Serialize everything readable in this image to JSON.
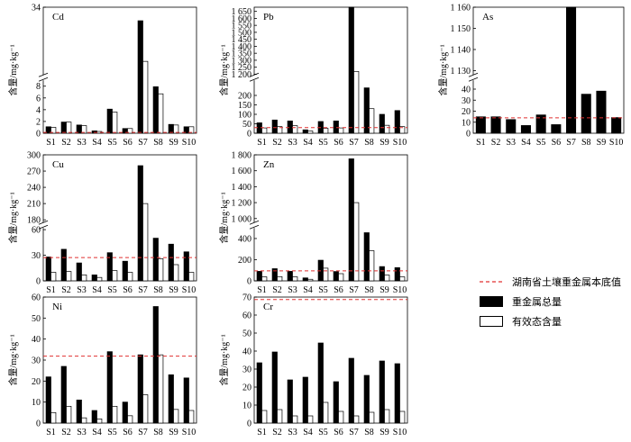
{
  "legend": {
    "threshold_label": "湖南省土壤重金属本底值",
    "total_label": "重金属总量",
    "available_label": "有效态含量"
  },
  "colors": {
    "total": "#000000",
    "available": "#ffffff",
    "threshold": "#e03030"
  },
  "chart_data": [
    {
      "type": "bar",
      "title": "Cd",
      "ylabel": "含量/mg·kg⁻¹",
      "categories": [
        "S1",
        "S2",
        "S3",
        "S4",
        "S5",
        "S6",
        "S7",
        "S8",
        "S9",
        "S10"
      ],
      "series": [
        {
          "values": [
            1.1,
            1.9,
            1.4,
            0.4,
            4.1,
            0.8,
            33.9,
            7.9,
            1.5,
            1.1
          ]
        },
        {
          "values": [
            1.0,
            1.9,
            1.3,
            0.3,
            3.6,
            0.8,
            33.6,
            6.7,
            1.4,
            1.1
          ]
        }
      ],
      "threshold": 0.126,
      "ylim": [
        0,
        34
      ],
      "ticks": [
        0,
        2,
        4,
        6,
        8,
        34
      ],
      "break": [
        9,
        33.5
      ]
    },
    {
      "type": "bar",
      "title": "Pb",
      "ylabel": "含量/mg·kg⁻¹",
      "categories": [
        "S1",
        "S2",
        "S3",
        "S4",
        "S5",
        "S6",
        "S7",
        "S8",
        "S9",
        "S10"
      ],
      "series": [
        {
          "values": [
            55,
            70,
            65,
            18,
            62,
            65,
            1680,
            240,
            100,
            120
          ]
        },
        {
          "values": [
            28,
            35,
            40,
            12,
            26,
            28,
            1220,
            130,
            42,
            35
          ]
        }
      ],
      "threshold": 29.7,
      "ylim": [
        0,
        1680
      ],
      "ticks": [
        0,
        50,
        100,
        150,
        200,
        1200,
        1250,
        1300,
        1350,
        1400,
        1450,
        1500,
        1550,
        1600,
        1650
      ],
      "break": [
        280,
        1195
      ]
    },
    {
      "type": "bar",
      "title": "As",
      "ylabel": "含量/mg·kg⁻¹",
      "categories": [
        "S1",
        "S2",
        "S3",
        "S4",
        "S5",
        "S6",
        "S7",
        "S8",
        "S9",
        "S10"
      ],
      "series": [
        {
          "values": [
            14.9,
            14.9,
            12.4,
            7.0,
            16.6,
            7.8,
            1160,
            35.4,
            38.2,
            14.2
          ]
        }
      ],
      "threshold": 14.0,
      "ylim": [
        0,
        1160
      ],
      "ticks": [
        0,
        10,
        20,
        30,
        40,
        1130,
        1140,
        1150,
        1160
      ],
      "break": [
        48,
        1128
      ]
    },
    {
      "type": "bar",
      "title": "Cu",
      "ylabel": "含量/mg·kg⁻¹",
      "categories": [
        "S1",
        "S2",
        "S3",
        "S4",
        "S5",
        "S6",
        "S7",
        "S8",
        "S9",
        "S10"
      ],
      "series": [
        {
          "values": [
            28,
            37,
            21,
            7,
            33,
            23,
            280,
            50,
            43,
            34
          ]
        },
        {
          "values": [
            10,
            11,
            7,
            4,
            12,
            10,
            210,
            26,
            19,
            10
          ]
        }
      ],
      "threshold": 27.3,
      "ylim": [
        0,
        300
      ],
      "ticks": [
        0,
        30,
        60,
        180,
        210,
        240,
        270,
        300
      ],
      "break": [
        62,
        175
      ]
    },
    {
      "type": "bar",
      "title": "Zn",
      "ylabel": "含量/mg·kg⁻¹",
      "categories": [
        "S1",
        "S2",
        "S3",
        "S4",
        "S5",
        "S6",
        "S7",
        "S8",
        "S9",
        "S10"
      ],
      "series": [
        {
          "values": [
            90,
            115,
            90,
            28,
            195,
            88,
            1750,
            455,
            135,
            125
          ]
        },
        {
          "values": [
            38,
            40,
            38,
            15,
            120,
            68,
            1200,
            285,
            55,
            38
          ]
        }
      ],
      "threshold": 94.4,
      "ylim": [
        0,
        1800
      ],
      "ticks": [
        0,
        200,
        400,
        1000,
        1200,
        1400,
        1600,
        1800
      ],
      "break": [
        500,
        950
      ]
    },
    {
      "type": "bar",
      "title": "Ni",
      "ylabel": "含量/mg·kg⁻¹",
      "categories": [
        "S1",
        "S2",
        "S3",
        "S4",
        "S5",
        "S6",
        "S7",
        "S8",
        "S9",
        "S10"
      ],
      "series": [
        {
          "values": [
            22,
            27,
            11,
            6,
            34,
            10,
            32.5,
            55.5,
            23,
            21.5
          ]
        },
        {
          "values": [
            5,
            8,
            2.5,
            2,
            8,
            3.5,
            13.5,
            32.5,
            6.5,
            6
          ]
        }
      ],
      "threshold": 31.9,
      "ylim": [
        0,
        60
      ],
      "ticks": [
        0,
        10,
        20,
        30,
        40,
        50,
        60
      ]
    },
    {
      "type": "bar",
      "title": "Cr",
      "ylabel": "含量/mg·kg⁻¹",
      "categories": [
        "S1",
        "S2",
        "S3",
        "S4",
        "S5",
        "S6",
        "S7",
        "S8",
        "S9",
        "S10"
      ],
      "series": [
        {
          "values": [
            33.5,
            39.5,
            24,
            25.5,
            44.5,
            23,
            36,
            26.5,
            34.5,
            33
          ]
        },
        {
          "values": [
            7,
            7.5,
            4,
            4,
            11.5,
            6.5,
            4,
            6,
            7.5,
            6.5
          ]
        }
      ],
      "threshold": 68.6,
      "ylim": [
        0,
        70
      ],
      "ticks": [
        0,
        10,
        20,
        30,
        40,
        50,
        60,
        70
      ]
    }
  ]
}
